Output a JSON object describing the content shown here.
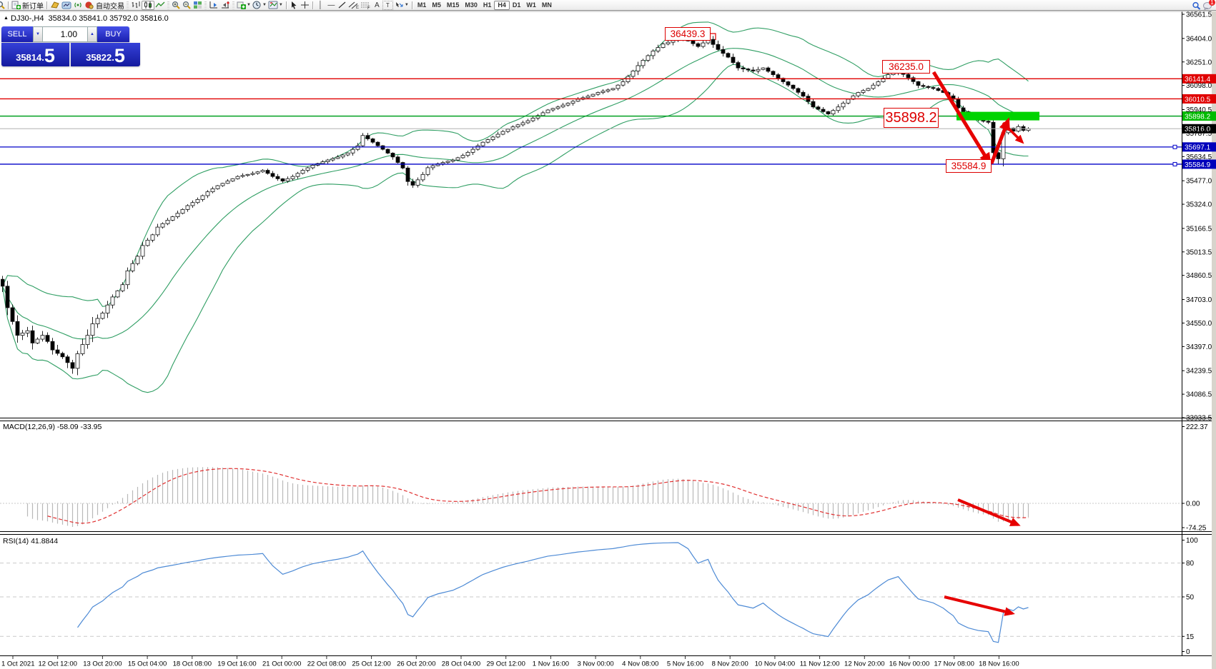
{
  "toolbar": {
    "new_order_label": "新订单",
    "autotrade_label": "自动交易",
    "notification_count": "1",
    "timeframes": {
      "items": [
        "M1",
        "M5",
        "M15",
        "M30",
        "H1",
        "H4",
        "D1",
        "W1",
        "MN"
      ],
      "active": "H4"
    },
    "text_tool_a": "A",
    "text_tool_t": "T"
  },
  "chart": {
    "symbol_line": {
      "symbol": "DJ30-,H4",
      "open": "35834.0",
      "high": "35841.0",
      "low": "35792.0",
      "close": "35816.0"
    },
    "one_click": {
      "sell_label": "SELL",
      "buy_label": "BUY",
      "volume": "1.00",
      "decimal_sep": ".",
      "sell_price_int": "35814",
      "sell_price_frac": "5",
      "buy_price_int": "35822",
      "buy_price_frac": "5"
    },
    "annotations": {
      "labels": [
        {
          "id": "ann-high",
          "text": "36439.3"
        },
        {
          "id": "ann-lower-high",
          "text": "36235.0"
        },
        {
          "id": "ann-entry",
          "text": "35898.2"
        },
        {
          "id": "ann-low",
          "text": "35584.9"
        }
      ]
    }
  },
  "indicators": {
    "macd": {
      "label": "MACD(12,26,9) -58.09 -33.95",
      "scale_top": "222.37",
      "scale_zero": "0.00",
      "scale_bottom": "-74.25"
    },
    "rsi": {
      "label": "RSI(14) 41.8844",
      "scale": [
        "100",
        "80",
        "50",
        "15",
        "0"
      ]
    }
  },
  "chart_data": {
    "type": "candlestick",
    "symbol": "DJ30-",
    "timeframe": "H4",
    "ohlc_current": {
      "open": 35834.0,
      "high": 35841.0,
      "low": 35792.0,
      "close": 35816.0
    },
    "bid": 35814.5,
    "ask": 35822.5,
    "y_ticks": [
      36561.5,
      36404.0,
      36251.0,
      36098.0,
      35940.5,
      35787.5,
      35634.5,
      35477.0,
      35324.0,
      35166.5,
      35013.5,
      34860.5,
      34703.0,
      34550.0,
      34397.0,
      34239.5,
      34086.5,
      33933.5
    ],
    "x_labels": [
      "1 Oct 2021",
      "12 Oct 12:00",
      "13 Oct 20:00",
      "15 Oct 04:00",
      "18 Oct 08:00",
      "19 Oct 16:00",
      "21 Oct 00:00",
      "22 Oct 08:00",
      "25 Oct 12:00",
      "26 Oct 20:00",
      "28 Oct 04:00",
      "29 Oct 12:00",
      "1 Nov 16:00",
      "3 Nov 00:00",
      "4 Nov 08:00",
      "5 Nov 16:00",
      "8 Nov 20:00",
      "10 Nov 04:00",
      "11 Nov 12:00",
      "12 Nov 20:00",
      "16 Nov 00:00",
      "17 Nov 08:00",
      "18 Nov 16:00"
    ],
    "price_lines": [
      {
        "price": 36141.4,
        "color": "red"
      },
      {
        "price": 36010.5,
        "color": "red"
      },
      {
        "price": 35898.2,
        "color": "green"
      },
      {
        "price": 35816.0,
        "color": "gray",
        "badge": "black"
      },
      {
        "price": 35697.1,
        "color": "blue",
        "handles": true
      },
      {
        "price": 35584.9,
        "color": "blue",
        "handles": true
      }
    ],
    "highlight_band": {
      "price": 35898.2,
      "color": "#00d300"
    },
    "annotation_prices": [
      36439.3,
      36235.0,
      35898.2,
      35584.9
    ],
    "n_candles": 206,
    "candles_anchor_path": [
      [
        0,
        34790
      ],
      [
        1,
        34650
      ],
      [
        2,
        34560
      ],
      [
        3,
        34470
      ],
      [
        5,
        34500
      ],
      [
        6,
        34420
      ],
      [
        8,
        34470
      ],
      [
        9,
        34430
      ],
      [
        10,
        34375
      ],
      [
        12,
        34330
      ],
      [
        14,
        34255
      ],
      [
        15,
        34350
      ],
      [
        17,
        34470
      ],
      [
        18,
        34545
      ],
      [
        20,
        34615
      ],
      [
        22,
        34720
      ],
      [
        24,
        34800
      ],
      [
        25,
        34890
      ],
      [
        27,
        34985
      ],
      [
        28,
        35055
      ],
      [
        30,
        35125
      ],
      [
        31,
        35175
      ],
      [
        33,
        35220
      ],
      [
        35,
        35265
      ],
      [
        37,
        35315
      ],
      [
        39,
        35355
      ],
      [
        41,
        35405
      ],
      [
        43,
        35445
      ],
      [
        45,
        35475
      ],
      [
        47,
        35505
      ],
      [
        50,
        35525
      ],
      [
        52,
        35545
      ],
      [
        54,
        35505
      ],
      [
        56,
        35475
      ],
      [
        58,
        35505
      ],
      [
        60,
        35545
      ],
      [
        62,
        35578
      ],
      [
        65,
        35612
      ],
      [
        67,
        35632
      ],
      [
        69,
        35658
      ],
      [
        71,
        35705
      ],
      [
        72,
        35772
      ],
      [
        74,
        35728
      ],
      [
        76,
        35682
      ],
      [
        78,
        35632
      ],
      [
        80,
        35560
      ],
      [
        81,
        35472
      ],
      [
        82,
        35448
      ],
      [
        84,
        35518
      ],
      [
        85,
        35562
      ],
      [
        87,
        35588
      ],
      [
        90,
        35612
      ],
      [
        92,
        35642
      ],
      [
        94,
        35682
      ],
      [
        96,
        35728
      ],
      [
        98,
        35762
      ],
      [
        100,
        35798
      ],
      [
        102,
        35828
      ],
      [
        105,
        35868
      ],
      [
        107,
        35902
      ],
      [
        109,
        35938
      ],
      [
        111,
        35958
      ],
      [
        113,
        35982
      ],
      [
        115,
        36008
      ],
      [
        117,
        36028
      ],
      [
        119,
        36052
      ],
      [
        122,
        36078
      ],
      [
        124,
        36122
      ],
      [
        126,
        36192
      ],
      [
        128,
        36262
      ],
      [
        130,
        36322
      ],
      [
        132,
        36368
      ],
      [
        135,
        36402
      ],
      [
        137,
        36388
      ],
      [
        139,
        36352
      ],
      [
        141,
        36398
      ],
      [
        143,
        36332
      ],
      [
        145,
        36282
      ],
      [
        147,
        36212
      ],
      [
        150,
        36192
      ],
      [
        152,
        36212
      ],
      [
        154,
        36168
      ],
      [
        156,
        36122
      ],
      [
        158,
        36078
      ],
      [
        160,
        36028
      ],
      [
        162,
        35958
      ],
      [
        165,
        35912
      ],
      [
        167,
        35958
      ],
      [
        169,
        36008
      ],
      [
        171,
        36052
      ],
      [
        173,
        36078
      ],
      [
        175,
        36122
      ],
      [
        177,
        36168
      ],
      [
        179,
        36192
      ],
      [
        181,
        36148
      ],
      [
        183,
        36098
      ],
      [
        186,
        36078
      ],
      [
        188,
        36052
      ],
      [
        190,
        36008
      ],
      [
        191,
        35952
      ],
      [
        193,
        35902
      ],
      [
        195,
        35872
      ],
      [
        197,
        35858
      ],
      [
        198,
        35660
      ],
      [
        199,
        35620
      ],
      [
        200,
        35790
      ],
      [
        201,
        35820
      ],
      [
        202,
        35800
      ],
      [
        203,
        35830
      ],
      [
        204,
        35805
      ],
      [
        205,
        35816
      ]
    ],
    "overrides": [
      {
        "i": 141,
        "high": 36439.3
      },
      {
        "i": 179,
        "high": 36235.0
      },
      {
        "i": 199,
        "low": 35584.9
      }
    ],
    "bollinger": {
      "period": 20,
      "deviation": 2
    },
    "macd": {
      "fast": 12,
      "slow": 26,
      "signal": 9,
      "current_macd": -58.09,
      "current_signal": -33.95,
      "scale_max": 222.37,
      "scale_min": -74.25
    },
    "rsi": {
      "period": 14,
      "current": 41.8844,
      "levels": [
        80,
        50,
        15
      ]
    }
  }
}
